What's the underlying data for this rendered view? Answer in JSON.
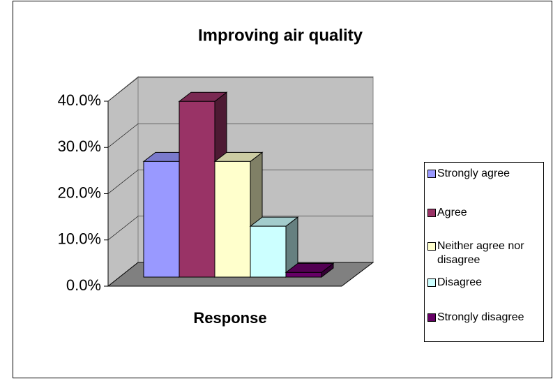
{
  "chart_data": {
    "type": "bar3d",
    "title": "Improving air quality",
    "x_label": "Response",
    "series": [
      {
        "name": "Strongly agree",
        "color": "#9999ff",
        "values": [
          25
        ]
      },
      {
        "name": "Agree",
        "color": "#993366",
        "values": [
          38
        ]
      },
      {
        "name": "Neither agree nor disagree",
        "color": "#ffffcc",
        "values": [
          25
        ]
      },
      {
        "name": "Disagree",
        "color": "#ccffff",
        "values": [
          11
        ]
      },
      {
        "name": "Strongly disagree",
        "color": "#660066",
        "values": [
          1
        ]
      }
    ],
    "ylim": [
      0,
      40
    ],
    "yticks": [
      {
        "value": 0,
        "label": "0.0%"
      },
      {
        "value": 10,
        "label": "10.0%"
      },
      {
        "value": 20,
        "label": "20.0%"
      },
      {
        "value": 30,
        "label": "30.0%"
      },
      {
        "value": 40,
        "label": "40.0%"
      }
    ],
    "grid": true,
    "legend": "right"
  }
}
